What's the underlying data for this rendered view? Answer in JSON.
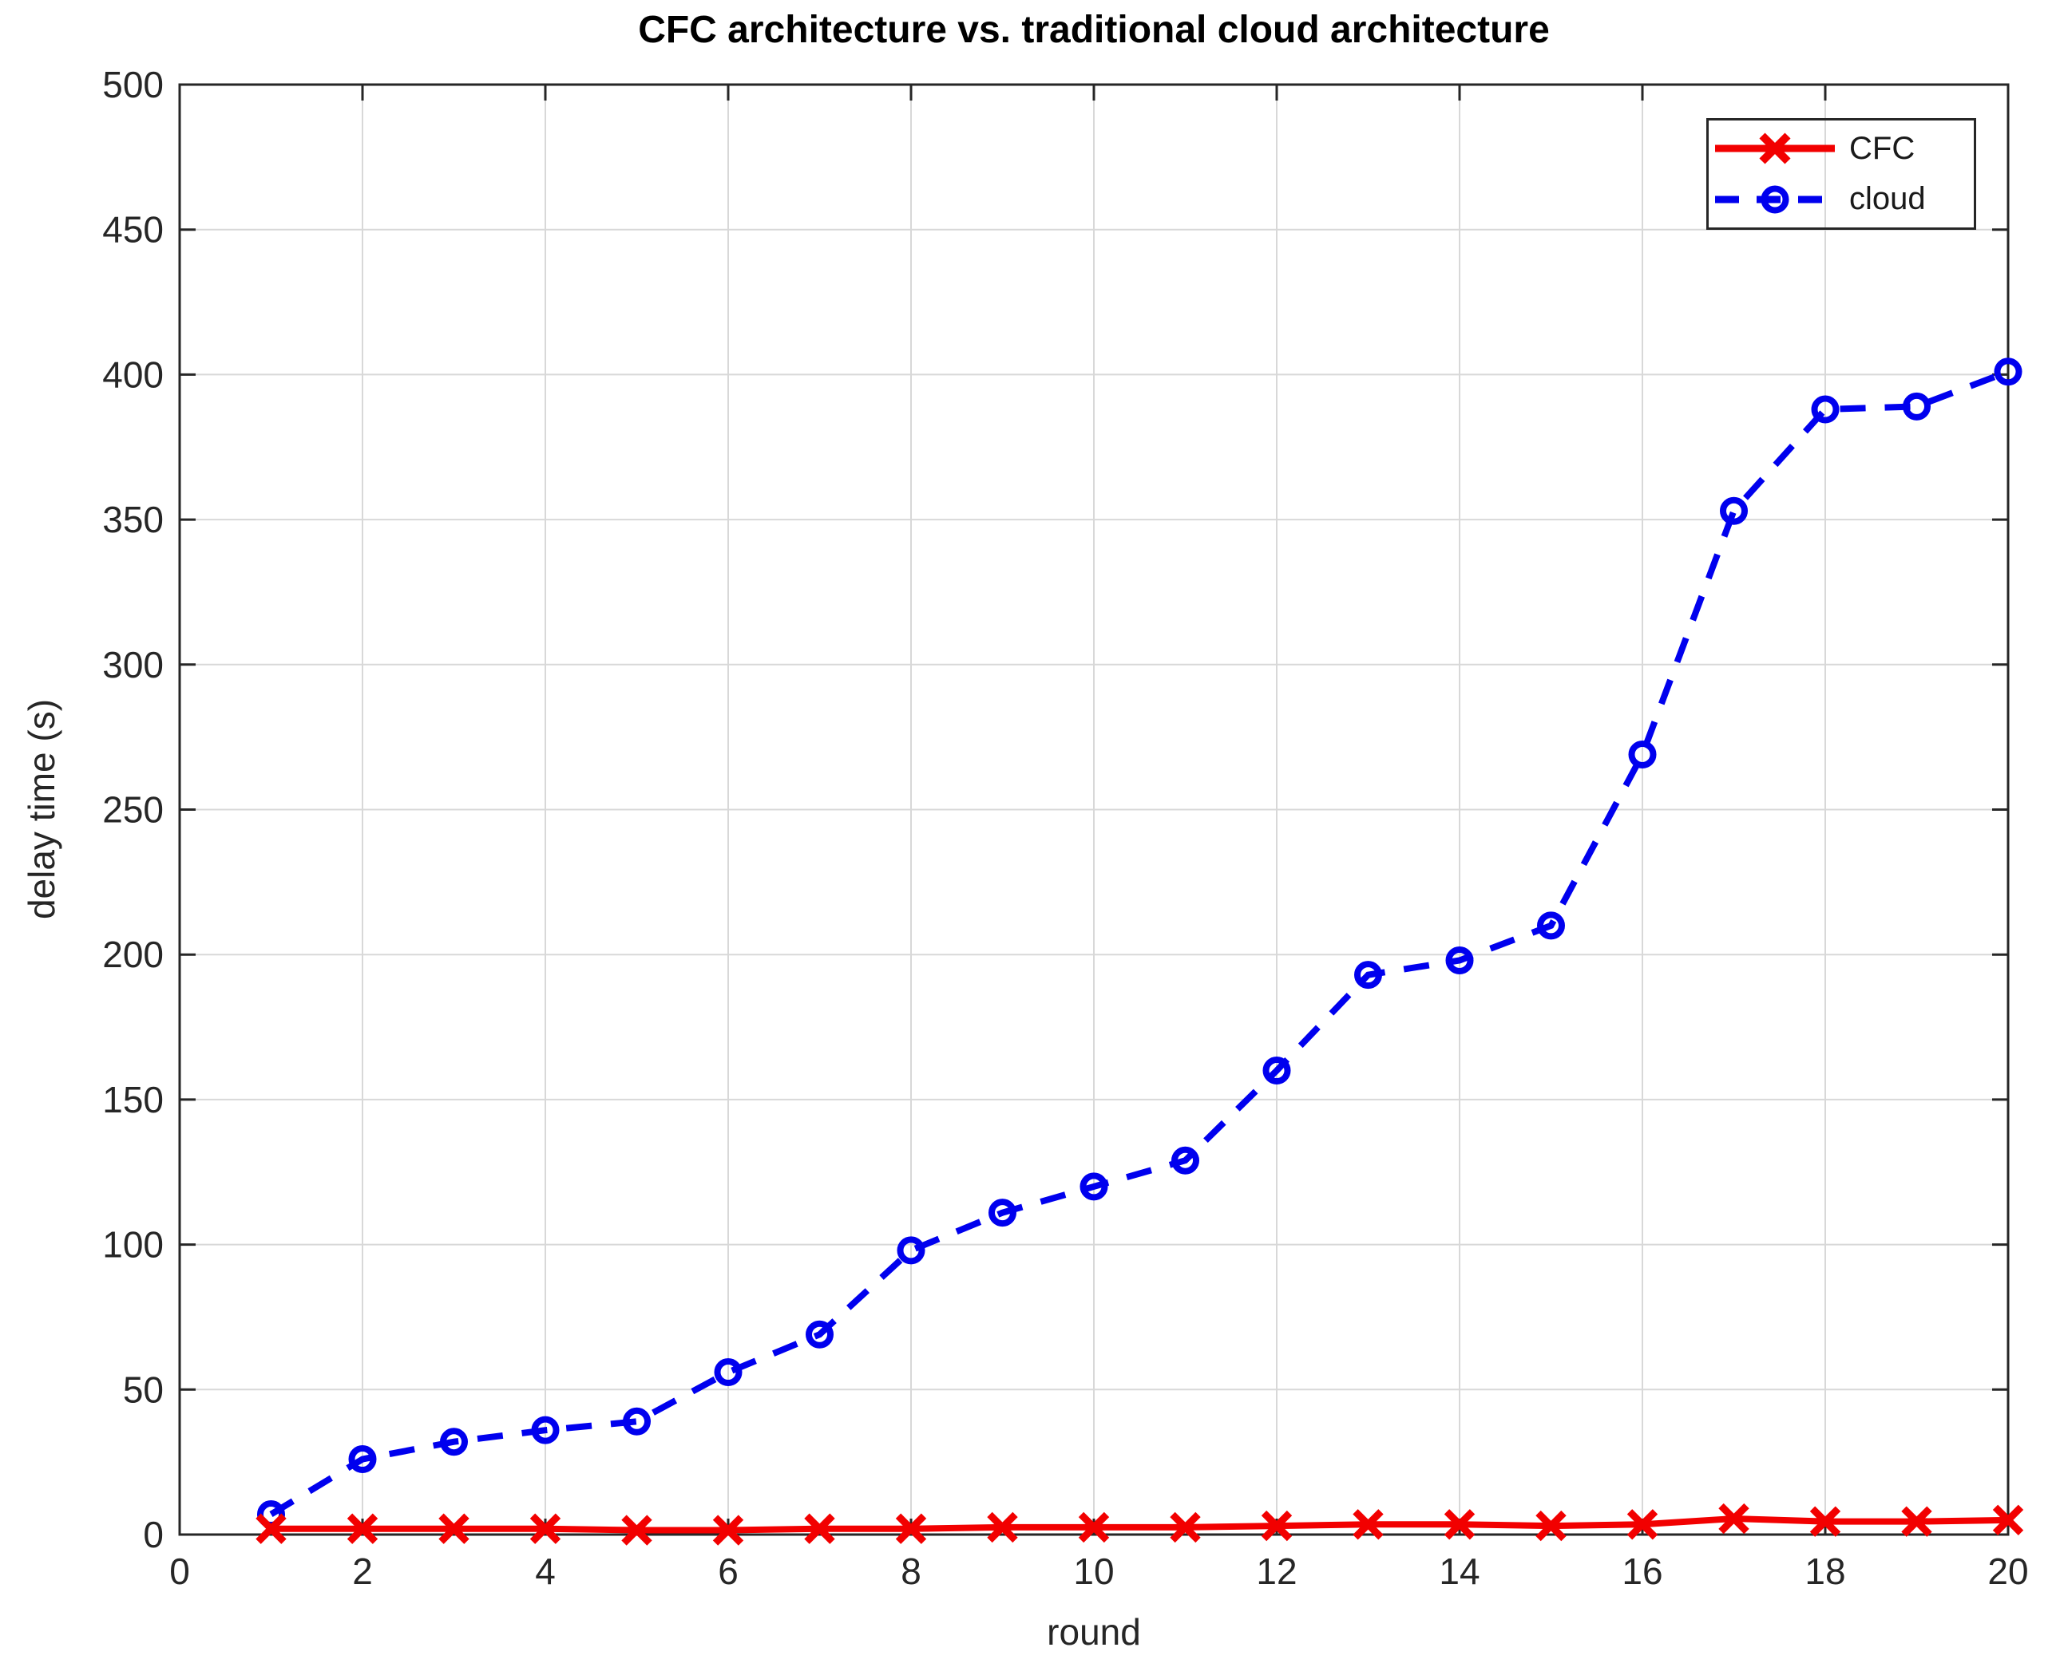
{
  "figure": {
    "title": "CFC architecture vs. traditional cloud architecture",
    "xlabel": "round",
    "ylabel": "delay time (s)"
  },
  "legend": {
    "position": "top-right",
    "entries": [
      "CFC",
      "cloud"
    ]
  },
  "chart_data": {
    "type": "line",
    "title": "CFC architecture vs. traditional cloud architecture",
    "xlabel": "round",
    "ylabel": "delay time (s)",
    "xlim": [
      0,
      20
    ],
    "ylim": [
      0,
      500
    ],
    "x_ticks": [
      0,
      2,
      4,
      6,
      8,
      10,
      12,
      14,
      16,
      18,
      20
    ],
    "y_ticks": [
      0,
      50,
      100,
      150,
      200,
      250,
      300,
      350,
      400,
      450,
      500
    ],
    "grid": true,
    "legend_position": "top-right",
    "x": [
      1,
      2,
      3,
      4,
      5,
      6,
      7,
      8,
      9,
      10,
      11,
      12,
      13,
      14,
      15,
      16,
      17,
      18,
      19,
      20
    ],
    "series": [
      {
        "name": "cloud",
        "color": "#0000ee",
        "line_style": "dashed",
        "marker": "circle",
        "values": [
          7,
          26,
          32,
          36,
          39,
          56,
          69,
          98,
          111,
          120,
          129,
          160,
          193,
          198,
          210,
          269,
          353,
          388,
          389,
          401
        ]
      },
      {
        "name": "CFC",
        "color": "#f20000",
        "line_style": "solid",
        "marker": "x",
        "values": [
          2,
          2,
          2,
          2,
          1.5,
          1.5,
          2,
          2,
          2.5,
          2.5,
          2.5,
          3,
          3.5,
          3.5,
          3,
          3.5,
          5.5,
          4.5,
          4.5,
          5
        ]
      }
    ],
    "colors": {
      "grid": "#d8d8d8",
      "axis": "#262626",
      "tick_label": "#262626",
      "title": "#000000",
      "background": "#ffffff"
    }
  }
}
